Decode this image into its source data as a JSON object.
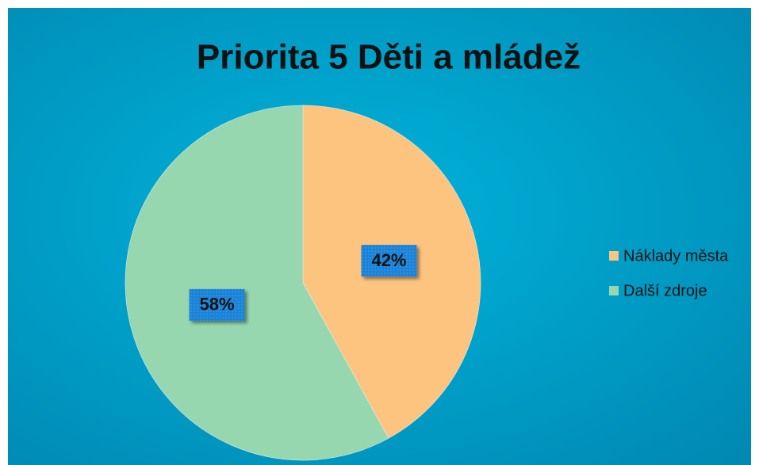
{
  "chart_data": {
    "type": "pie",
    "title": "Priorita 5 Děti a mládež",
    "categories": [
      "Náklady města",
      "Další zdroje"
    ],
    "values": [
      42,
      58
    ],
    "value_labels": [
      "42%",
      "58%"
    ],
    "colors": [
      "#fdc47f",
      "#96d7b0"
    ],
    "legend": "right"
  }
}
